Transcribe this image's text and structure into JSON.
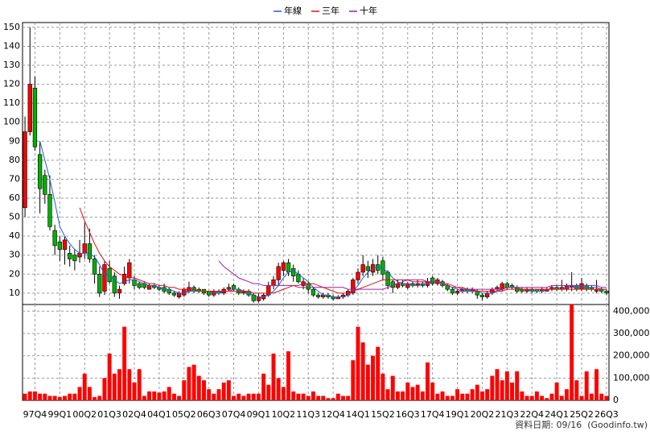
{
  "chart_data": {
    "type": "candlestick",
    "legend": "top",
    "grid": true,
    "up_color": "#ff0000",
    "down_color": "#00b000",
    "categories": [
      null,
      null,
      "97Q4",
      null,
      null,
      null,
      null,
      "99Q1",
      null,
      null,
      null,
      null,
      "00Q2",
      null,
      null,
      null,
      null,
      "01Q3",
      null,
      null,
      null,
      null,
      "02Q4",
      null,
      null,
      null,
      null,
      "04Q1",
      null,
      null,
      null,
      null,
      "05Q2",
      null,
      null,
      null,
      null,
      "06Q3",
      null,
      null,
      null,
      null,
      "07Q4",
      null,
      null,
      null,
      null,
      "09Q1",
      null,
      null,
      null,
      null,
      "10Q2",
      null,
      null,
      null,
      null,
      "11Q3",
      null,
      null,
      null,
      null,
      "12Q4",
      null,
      null,
      null,
      null,
      "14Q1",
      null,
      null,
      null,
      null,
      "15Q2",
      null,
      null,
      null,
      null,
      "16Q3",
      null,
      null,
      null,
      null,
      "17Q4",
      null,
      null,
      null,
      null,
      "19Q1",
      null,
      null,
      null,
      null,
      "20Q2",
      null,
      null,
      null,
      null,
      "21Q3",
      null,
      null,
      null,
      null,
      "22Q4",
      null,
      null,
      null,
      null,
      "24Q1",
      null,
      null,
      null,
      null,
      "25Q2",
      null,
      null,
      null,
      null,
      "26Q3"
    ],
    "open": [
      55,
      95,
      118,
      83,
      72,
      62,
      43,
      37,
      33,
      31,
      30,
      29,
      31,
      36,
      28,
      20,
      11,
      23,
      19,
      10,
      15,
      18,
      17,
      15,
      15,
      12,
      14,
      13,
      13,
      12,
      10,
      8,
      9,
      11,
      13,
      12,
      12,
      11,
      9,
      11,
      10,
      12,
      14,
      12,
      10,
      11,
      9,
      6,
      7,
      9,
      14,
      17,
      22,
      26,
      23,
      20,
      14,
      15,
      12,
      9,
      8,
      9,
      8,
      7,
      8,
      9,
      10,
      17,
      21,
      24,
      21,
      25,
      27,
      21,
      16,
      13,
      15,
      13,
      15,
      14,
      15,
      14,
      18,
      15,
      16,
      14,
      12,
      10,
      11,
      12,
      11,
      11,
      9,
      8,
      10,
      12,
      12,
      15,
      14,
      13,
      12,
      11,
      12,
      12,
      11,
      11,
      12,
      13,
      12,
      12,
      13,
      14,
      12,
      14,
      13,
      11,
      12,
      11
    ],
    "high": [
      103,
      150,
      124,
      90,
      75,
      72,
      46,
      40,
      40,
      35,
      33,
      38,
      47,
      44,
      30,
      24,
      27,
      27,
      21,
      14,
      24,
      28,
      19,
      16,
      16,
      15,
      15,
      14,
      15,
      13,
      11,
      11,
      13,
      16,
      14,
      13,
      12,
      11,
      12,
      12,
      13,
      15,
      15,
      13,
      12,
      12,
      10,
      10,
      10,
      16,
      19,
      26,
      27,
      28,
      25,
      22,
      18,
      16,
      13,
      10,
      10,
      10,
      9,
      9,
      10,
      12,
      18,
      23,
      30,
      27,
      28,
      30,
      29,
      22,
      17,
      17,
      17,
      16,
      16,
      17,
      16,
      18,
      19,
      18,
      17,
      15,
      13,
      12,
      13,
      13,
      13,
      12,
      10,
      11,
      13,
      14,
      16,
      16,
      15,
      14,
      13,
      13,
      13,
      12,
      13,
      13,
      14,
      14,
      17,
      15,
      21,
      15,
      18,
      15,
      14,
      17,
      13,
      12
    ],
    "low": [
      50,
      93,
      85,
      52,
      57,
      43,
      30,
      27,
      25,
      24,
      22,
      26,
      28,
      26,
      15,
      8,
      9,
      15,
      8,
      7,
      14,
      15,
      12,
      12,
      12,
      12,
      12,
      11,
      10,
      9,
      8,
      7,
      8,
      10,
      10,
      10,
      9,
      8,
      8,
      9,
      9,
      11,
      11,
      9,
      9,
      8,
      5,
      5,
      6,
      8,
      12,
      14,
      19,
      19,
      16,
      15,
      12,
      10,
      8,
      7,
      7,
      7,
      6,
      7,
      7,
      8,
      9,
      15,
      19,
      18,
      19,
      20,
      17,
      12,
      10,
      12,
      13,
      12,
      13,
      13,
      13,
      13,
      14,
      14,
      13,
      11,
      9,
      9,
      10,
      10,
      10,
      7,
      6,
      7,
      9,
      11,
      11,
      12,
      12,
      10,
      10,
      10,
      10,
      10,
      10,
      11,
      11,
      11,
      11,
      11,
      11,
      11,
      11,
      11,
      11,
      10,
      10,
      9
    ],
    "close": [
      95,
      120,
      87,
      65,
      62,
      45,
      35,
      33,
      38,
      28,
      27,
      31,
      36,
      28,
      20,
      10,
      25,
      16,
      10,
      12,
      20,
      26,
      14,
      13,
      13,
      14,
      13,
      12,
      11,
      10,
      9,
      10,
      12,
      13,
      11,
      11,
      10,
      9,
      11,
      10,
      12,
      13,
      12,
      10,
      11,
      9,
      6,
      8,
      9,
      14,
      17,
      24,
      26,
      21,
      19,
      16,
      16,
      12,
      9,
      8,
      9,
      8,
      7,
      8,
      9,
      11,
      17,
      21,
      25,
      22,
      25,
      22,
      20,
      14,
      13,
      15,
      14,
      15,
      14,
      15,
      14,
      16,
      15,
      17,
      14,
      12,
      10,
      11,
      12,
      11,
      12,
      9,
      8,
      10,
      12,
      13,
      15,
      13,
      13,
      11,
      11,
      12,
      11,
      11,
      12,
      12,
      13,
      12,
      13,
      14,
      14,
      12,
      15,
      12,
      12,
      12,
      11,
      10
    ],
    "ylim": [
      4,
      152.5
    ],
    "yticks": [
      10,
      20,
      30,
      40,
      50,
      60,
      70,
      80,
      90,
      100,
      110,
      120,
      130,
      140,
      150
    ],
    "series": [
      {
        "name": "年線",
        "color": "#1f5fd0",
        "values": [
          null,
          null,
          null,
          90,
          80,
          70,
          58,
          45,
          40,
          36,
          33,
          31,
          31,
          31,
          29,
          25,
          20,
          19,
          17,
          15,
          16,
          17,
          17,
          16,
          15,
          14,
          14,
          13,
          12,
          12,
          11,
          10,
          10,
          11,
          11,
          11,
          11,
          11,
          10,
          10,
          11,
          11,
          12,
          12,
          11,
          10,
          9,
          8,
          8,
          9,
          11,
          14,
          18,
          21,
          22,
          20,
          18,
          16,
          13,
          11,
          9,
          9,
          8,
          8,
          8,
          9,
          11,
          14,
          18,
          21,
          23,
          24,
          23,
          21,
          18,
          16,
          15,
          15,
          14,
          14,
          15,
          15,
          16,
          16,
          15,
          14,
          13,
          12,
          11,
          11,
          11,
          11,
          10,
          10,
          10,
          11,
          12,
          13,
          13,
          13,
          12,
          12,
          11,
          11,
          11,
          12,
          12,
          12,
          12,
          13,
          13,
          13,
          13,
          13,
          13,
          13,
          12,
          12
        ]
      },
      {
        "name": "三年",
        "color": "#e01010",
        "values": [
          null,
          null,
          null,
          null,
          null,
          null,
          null,
          null,
          null,
          null,
          null,
          55,
          48,
          42,
          36,
          31,
          27,
          24,
          22,
          20,
          19,
          18,
          18,
          17,
          16,
          15,
          15,
          14,
          14,
          13,
          13,
          12,
          12,
          12,
          12,
          11,
          11,
          11,
          11,
          11,
          11,
          11,
          11,
          11,
          11,
          11,
          10,
          10,
          10,
          10,
          10,
          11,
          12,
          13,
          14,
          14,
          15,
          15,
          15,
          14,
          13,
          12,
          11,
          10,
          10,
          10,
          11,
          12,
          13,
          14,
          15,
          16,
          17,
          17,
          17,
          17,
          17,
          17,
          16,
          16,
          16,
          16,
          16,
          16,
          15,
          15,
          14,
          13,
          13,
          12,
          12,
          11,
          11,
          11,
          11,
          11,
          11,
          12,
          12,
          12,
          12,
          12,
          12,
          12,
          12,
          12,
          12,
          12,
          12,
          12,
          12,
          12,
          12,
          12,
          12,
          12,
          12,
          12
        ]
      },
      {
        "name": "十年",
        "color": "#a020a0",
        "values": [
          null,
          null,
          null,
          null,
          null,
          null,
          null,
          null,
          null,
          null,
          null,
          null,
          null,
          null,
          null,
          null,
          null,
          null,
          null,
          null,
          null,
          null,
          null,
          null,
          null,
          null,
          null,
          null,
          null,
          null,
          null,
          null,
          null,
          null,
          null,
          null,
          null,
          null,
          null,
          27,
          24,
          22,
          20,
          18,
          17,
          16,
          15,
          15,
          14,
          14,
          14,
          14,
          14,
          14,
          14,
          13,
          13,
          13,
          13,
          13,
          13,
          13,
          13,
          13,
          13,
          12,
          12,
          12,
          12,
          12,
          12,
          12,
          12,
          13,
          14,
          15,
          16,
          17,
          17,
          17,
          17,
          16,
          16,
          16,
          15,
          14,
          13,
          13,
          12,
          12,
          12,
          12,
          12,
          12,
          12,
          12,
          12,
          13,
          13,
          13,
          13,
          13,
          13,
          13,
          13,
          13,
          14,
          14,
          14,
          14,
          14,
          14,
          14,
          14,
          14,
          14,
          13,
          13
        ]
      }
    ],
    "volume": {
      "color": "#ff0000",
      "ylim": [
        0,
        430000
      ],
      "yticks": [
        0,
        {
          "value": 100000,
          "label": "100,000"
        },
        {
          "value": 200000,
          "label": "200,000"
        },
        {
          "value": 300000,
          "label": "300,000"
        },
        {
          "value": 400000,
          "label": "400,000"
        }
      ],
      "values": [
        30000,
        40000,
        40000,
        30000,
        30000,
        20000,
        20000,
        15000,
        20000,
        30000,
        30000,
        60000,
        120000,
        60000,
        15000,
        20000,
        100000,
        210000,
        120000,
        140000,
        330000,
        140000,
        80000,
        140000,
        20000,
        40000,
        40000,
        35000,
        40000,
        60000,
        30000,
        20000,
        90000,
        150000,
        160000,
        110000,
        90000,
        50000,
        30000,
        50000,
        80000,
        90000,
        20000,
        30000,
        20000,
        30000,
        30000,
        30000,
        120000,
        70000,
        210000,
        100000,
        60000,
        220000,
        40000,
        30000,
        30000,
        20000,
        40000,
        20000,
        20000,
        10000,
        10000,
        30000,
        20000,
        20000,
        180000,
        330000,
        260000,
        160000,
        200000,
        240000,
        120000,
        50000,
        110000,
        40000,
        40000,
        80000,
        60000,
        70000,
        40000,
        170000,
        80000,
        30000,
        40000,
        20000,
        20000,
        50000,
        30000,
        30000,
        50000,
        70000,
        40000,
        50000,
        110000,
        140000,
        90000,
        130000,
        80000,
        130000,
        40000,
        20000,
        20000,
        40000,
        20000,
        10000,
        30000,
        80000,
        20000,
        50000,
        430000,
        90000,
        20000,
        130000,
        30000,
        140000,
        30000,
        20000
      ]
    },
    "footer": "資料日期: 09/16  (Goodinfo.tw)"
  }
}
